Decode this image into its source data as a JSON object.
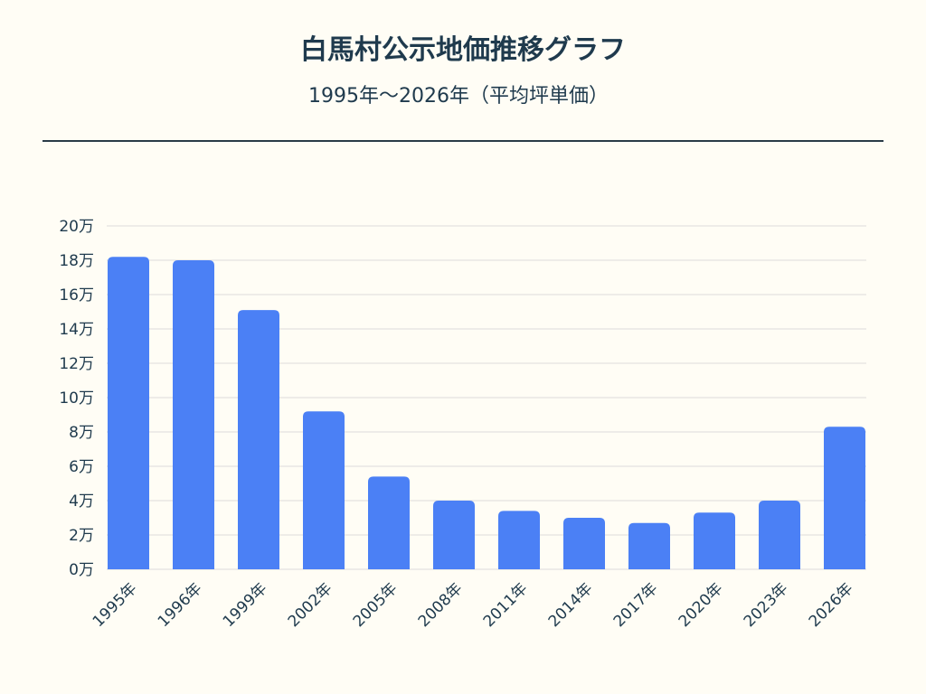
{
  "title": "白馬村公示地価推移グラフ",
  "subtitle": "1995年〜2026年（平均坪単価）",
  "colors": {
    "background": "#fffdf5",
    "bar": "#4b80f5",
    "text": "#1f3a4d",
    "grid": "#dcdcdc",
    "rule": "#2a3b47"
  },
  "chart_data": {
    "type": "bar",
    "categories": [
      "1995年",
      "1996年",
      "1999年",
      "2002年",
      "2005年",
      "2008年",
      "2011年",
      "2014年",
      "2017年",
      "2020年",
      "2023年",
      "2026年"
    ],
    "values": [
      182000,
      180000,
      151000,
      92000,
      54000,
      40000,
      34000,
      30000,
      27000,
      33000,
      40000,
      83000
    ],
    "ylim": [
      0,
      200000
    ],
    "yticks": [
      0,
      20000,
      40000,
      60000,
      80000,
      100000,
      120000,
      140000,
      160000,
      180000,
      200000
    ],
    "ytick_labels": [
      "0万",
      "2万",
      "4万",
      "6万",
      "8万",
      "10万",
      "12万",
      "14万",
      "16万",
      "18万",
      "20万"
    ],
    "grid": true,
    "legend": "none"
  }
}
